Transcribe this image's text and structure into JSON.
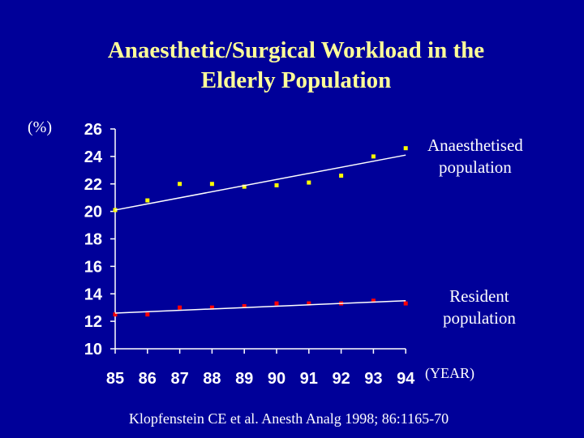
{
  "chart_data": {
    "type": "scatter",
    "title_lines": [
      "Anaesthetic/Surgical  Workload in the",
      "Elderly  Population"
    ],
    "ylabel": "(%)",
    "xlabel": "(YEAR)",
    "x": [
      85,
      86,
      87,
      88,
      89,
      90,
      91,
      92,
      93,
      94
    ],
    "ylim": [
      10,
      26
    ],
    "yticks": [
      10,
      12,
      14,
      16,
      18,
      20,
      22,
      24,
      26
    ],
    "grid": false,
    "series": [
      {
        "name_lines": [
          "Anaesthetised",
          "population"
        ],
        "color": "#FFFF00",
        "values": [
          20.1,
          20.8,
          22.0,
          22.0,
          21.8,
          21.9,
          22.1,
          22.6,
          24.0,
          24.6
        ],
        "trend": [
          20.1,
          24.1
        ]
      },
      {
        "name_lines": [
          "Resident",
          "population"
        ],
        "color": "#FF0000",
        "values": [
          12.5,
          12.5,
          13.0,
          13.0,
          13.1,
          13.3,
          13.3,
          13.3,
          13.5,
          13.3
        ],
        "trend": [
          12.6,
          13.5
        ]
      }
    ],
    "trendline_color": "#FFFFFF",
    "axis_color": "#FFFFFF"
  },
  "citation": "Klopfenstein CE et al. Anesth Analg 1998; 86:1165-70"
}
